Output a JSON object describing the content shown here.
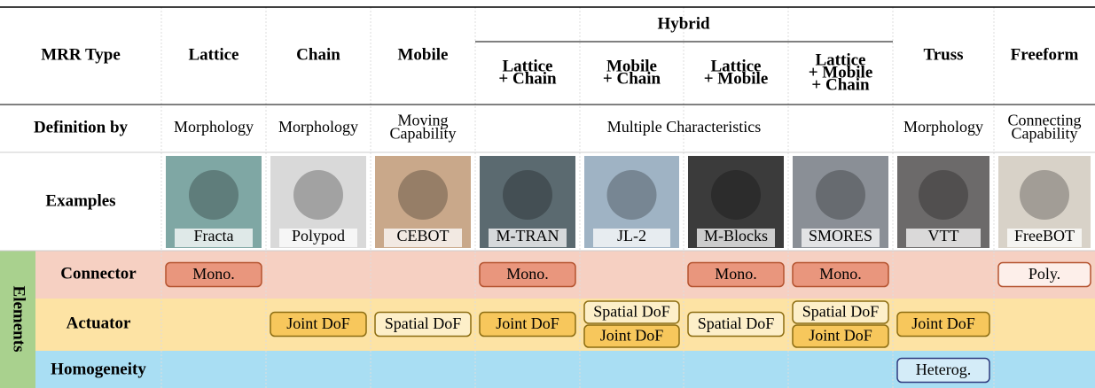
{
  "table": {
    "header": {
      "label": "MRR Type",
      "group": "Hybrid",
      "columns": [
        [
          "Lattice"
        ],
        [
          "Chain"
        ],
        [
          "Mobile"
        ],
        [
          "Lattice",
          "+ Chain"
        ],
        [
          "Mobile",
          "+ Chain"
        ],
        [
          "Lattice",
          "+ Mobile"
        ],
        [
          "Lattice",
          "+ Mobile",
          "+ Chain"
        ],
        [
          "Truss"
        ],
        [
          "Freeform"
        ]
      ]
    },
    "definition": {
      "label": "Definition by",
      "cells": [
        [
          "Morphology"
        ],
        [
          "Morphology"
        ],
        [
          "Moving",
          "Capability"
        ],
        [
          "Multiple Characteristics"
        ],
        [
          "Morphology"
        ],
        [
          "Connecting",
          "Capability"
        ]
      ]
    },
    "examples": {
      "label": "Examples",
      "items": [
        "Fracta",
        "Polypod",
        "CEBOT",
        "M-TRAN",
        "JL-2",
        "M-Blocks",
        "SMORES",
        "VTT",
        "FreeBOT"
      ]
    },
    "elements": {
      "label": "Elements",
      "color": "#a9d18e",
      "rows": [
        {
          "label": "Connector",
          "color": "#f6d0c2",
          "border": "#b4532f",
          "cells": [
            [
              {
                "text": "Mono.",
                "fill": "#e9967d"
              }
            ],
            [],
            [],
            [
              {
                "text": "Mono.",
                "fill": "#e9967d"
              }
            ],
            [],
            [
              {
                "text": "Mono.",
                "fill": "#e9967d"
              }
            ],
            [
              {
                "text": "Mono.",
                "fill": "#e9967d"
              }
            ],
            [],
            [
              {
                "text": "Poly.",
                "fill": "#fdefea"
              }
            ]
          ]
        },
        {
          "label": "Actuator",
          "color": "#fde3a4",
          "border": "#8c6d12",
          "cells": [
            [],
            [
              {
                "text": "Joint DoF",
                "fill": "#f7c75c"
              }
            ],
            [
              {
                "text": "Spatial DoF",
                "fill": "#fdefc9"
              }
            ],
            [
              {
                "text": "Joint DoF",
                "fill": "#f7c75c"
              }
            ],
            [
              {
                "text": "Spatial DoF",
                "fill": "#fdefc9"
              },
              {
                "text": "Joint DoF",
                "fill": "#f7c75c"
              }
            ],
            [
              {
                "text": "Spatial DoF",
                "fill": "#fdefc9"
              }
            ],
            [
              {
                "text": "Spatial DoF",
                "fill": "#fdefc9"
              },
              {
                "text": "Joint DoF",
                "fill": "#f7c75c"
              }
            ],
            [
              {
                "text": "Joint DoF",
                "fill": "#f7c75c"
              }
            ],
            []
          ]
        },
        {
          "label": "Homogeneity",
          "color": "#a9def3",
          "border": "#2f3a7e",
          "cells": [
            [],
            [],
            [],
            [],
            [],
            [],
            [],
            [
              {
                "text": "Heterog.",
                "fill": "#d4ecf8"
              }
            ],
            []
          ]
        }
      ]
    }
  }
}
